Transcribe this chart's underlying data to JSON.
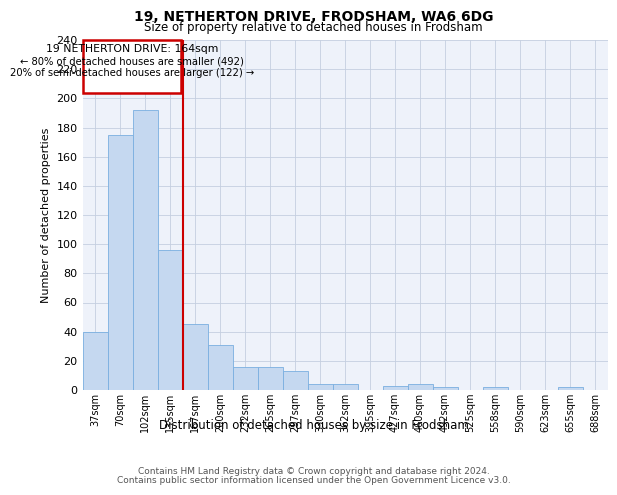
{
  "title1": "19, NETHERTON DRIVE, FRODSHAM, WA6 6DG",
  "title2": "Size of property relative to detached houses in Frodsham",
  "xlabel": "Distribution of detached houses by size in Frodsham",
  "ylabel": "Number of detached properties",
  "bar_labels": [
    "37sqm",
    "70sqm",
    "102sqm",
    "135sqm",
    "167sqm",
    "200sqm",
    "232sqm",
    "265sqm",
    "297sqm",
    "330sqm",
    "362sqm",
    "395sqm",
    "427sqm",
    "460sqm",
    "492sqm",
    "525sqm",
    "558sqm",
    "590sqm",
    "623sqm",
    "655sqm",
    "688sqm"
  ],
  "bar_values": [
    40,
    175,
    192,
    96,
    45,
    31,
    16,
    16,
    13,
    4,
    4,
    0,
    3,
    4,
    2,
    0,
    2,
    0,
    0,
    2,
    0
  ],
  "bar_color": "#c5d8f0",
  "bar_edge_color": "#7aafe0",
  "vline_color": "#cc0000",
  "vline_pos": 3.5,
  "annotation_lines": [
    "19 NETHERTON DRIVE: 164sqm",
    "← 80% of detached houses are smaller (492)",
    "20% of semi-detached houses are larger (122) →"
  ],
  "ann_box_color": "#cc0000",
  "ylim": [
    0,
    240
  ],
  "yticks": [
    0,
    20,
    40,
    60,
    80,
    100,
    120,
    140,
    160,
    180,
    200,
    220,
    240
  ],
  "footer1": "Contains HM Land Registry data © Crown copyright and database right 2024.",
  "footer2": "Contains public sector information licensed under the Open Government Licence v3.0.",
  "bg_color": "#eef2fa",
  "grid_color": "#c5cfe0"
}
